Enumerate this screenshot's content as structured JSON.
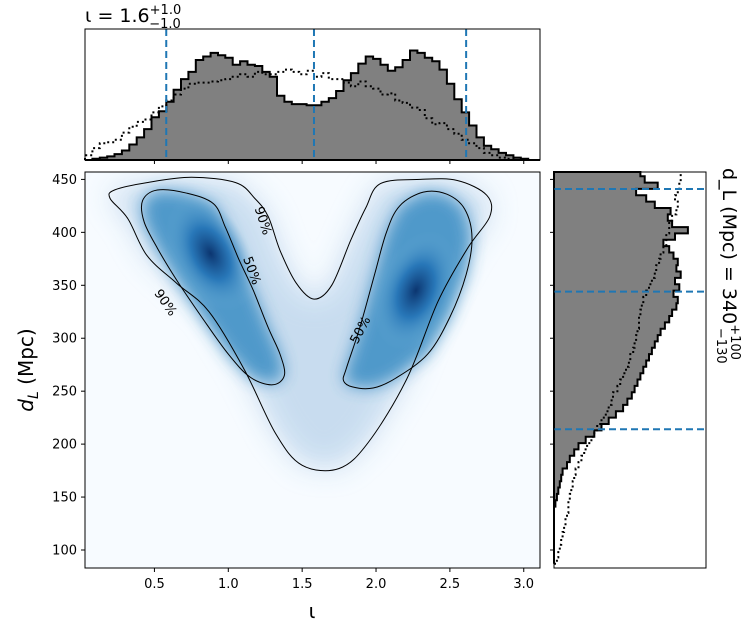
{
  "chart_data": [
    {
      "type": "heatmap",
      "panel": "joint",
      "xlabel": "ι",
      "ylabel": "d_L (Mpc)",
      "xlim": [
        0.03,
        3.11
      ],
      "ylim": [
        83,
        457
      ],
      "x_ticks": [
        "0.5",
        "1.0",
        "1.5",
        "2.0",
        "2.5",
        "3.0"
      ],
      "y_ticks": [
        "100",
        "150",
        "200",
        "250",
        "300",
        "350",
        "400",
        "450"
      ],
      "colormap": "Blues",
      "density_peaks": [
        {
          "x": 0.88,
          "y": 380
        },
        {
          "x": 2.27,
          "y": 345
        }
      ],
      "contour_labels": [
        "90%",
        "50%",
        "50%",
        "90%"
      ],
      "contours": [
        {
          "level": "90%",
          "points": [
            [
              0.23,
              440
            ],
            [
              0.45,
              447
            ],
            [
              0.75,
              452
            ],
            [
              1.05,
              447
            ],
            [
              1.18,
              432
            ],
            [
              1.27,
              415
            ],
            [
              1.35,
              383
            ],
            [
              1.46,
              352
            ],
            [
              1.58,
              337
            ],
            [
              1.7,
              350
            ],
            [
              1.83,
              393
            ],
            [
              1.93,
              423
            ],
            [
              2.03,
              446
            ],
            [
              2.3,
              450
            ],
            [
              2.55,
              449
            ],
            [
              2.75,
              435
            ],
            [
              2.77,
              415
            ],
            [
              2.62,
              385
            ],
            [
              2.42,
              335
            ],
            [
              2.21,
              262
            ],
            [
              1.95,
              202
            ],
            [
              1.75,
              177
            ],
            [
              1.5,
              180
            ],
            [
              1.32,
              210
            ],
            [
              1.11,
              270
            ],
            [
              0.87,
              325
            ],
            [
              0.65,
              352
            ],
            [
              0.45,
              378
            ],
            [
              0.32,
              413
            ],
            [
              0.2,
              432
            ]
          ]
        },
        {
          "level": "50%",
          "points": [
            [
              0.42,
              430
            ],
            [
              0.52,
              440
            ],
            [
              0.72,
              437
            ],
            [
              0.9,
              427
            ],
            [
              0.98,
              405
            ],
            [
              1.07,
              375
            ],
            [
              1.17,
              345
            ],
            [
              1.27,
              310
            ],
            [
              1.35,
              285
            ],
            [
              1.38,
              265
            ],
            [
              1.3,
              256
            ],
            [
              1.15,
              263
            ],
            [
              1.0,
              285
            ],
            [
              0.82,
              320
            ],
            [
              0.65,
              355
            ],
            [
              0.52,
              385
            ],
            [
              0.43,
              410
            ]
          ]
        },
        {
          "level": "50%",
          "points": [
            [
              1.8,
              272
            ],
            [
              1.78,
              260
            ],
            [
              1.84,
              254
            ],
            [
              1.98,
              253
            ],
            [
              2.13,
              262
            ],
            [
              2.35,
              285
            ],
            [
              2.5,
              320
            ],
            [
              2.61,
              360
            ],
            [
              2.65,
              395
            ],
            [
              2.6,
              422
            ],
            [
              2.48,
              436
            ],
            [
              2.32,
              438
            ],
            [
              2.16,
              425
            ],
            [
              2.07,
              400
            ],
            [
              1.99,
              360
            ],
            [
              1.89,
              310
            ]
          ]
        }
      ]
    },
    {
      "type": "bar",
      "panel": "top-marginal",
      "annotation": {
        "base": "ι = 1.6",
        "sup": "+1.0",
        "sub": "−1.0"
      },
      "quantile_lines": [
        0.58,
        1.58,
        2.61
      ],
      "xlim": [
        0.03,
        3.11
      ],
      "ylim": [
        0,
        1.0
      ],
      "bin_edges_start": 0.03,
      "bin_width": 0.05,
      "series": [
        {
          "style": "filled-step",
          "values": [
            0.0,
            0.01,
            0.02,
            0.03,
            0.05,
            0.08,
            0.13,
            0.19,
            0.26,
            0.36,
            0.41,
            0.49,
            0.59,
            0.68,
            0.74,
            0.84,
            0.87,
            0.9,
            0.88,
            0.86,
            0.8,
            0.83,
            0.8,
            0.79,
            0.74,
            0.7,
            0.54,
            0.49,
            0.47,
            0.47,
            0.46,
            0.46,
            0.49,
            0.52,
            0.58,
            0.67,
            0.73,
            0.81,
            0.87,
            0.85,
            0.8,
            0.75,
            0.78,
            0.84,
            0.92,
            0.9,
            0.86,
            0.83,
            0.76,
            0.64,
            0.51,
            0.4,
            0.29,
            0.19,
            0.12,
            0.09,
            0.06,
            0.04,
            0.02,
            0.01,
            0.0,
            0.0
          ]
        },
        {
          "style": "dotted-step",
          "values": [
            0.04,
            0.1,
            0.14,
            0.15,
            0.17,
            0.23,
            0.28,
            0.32,
            0.34,
            0.4,
            0.45,
            0.5,
            0.55,
            0.6,
            0.64,
            0.65,
            0.65,
            0.66,
            0.67,
            0.68,
            0.7,
            0.72,
            0.7,
            0.74,
            0.72,
            0.72,
            0.74,
            0.76,
            0.74,
            0.72,
            0.75,
            0.7,
            0.73,
            0.68,
            0.68,
            0.65,
            0.62,
            0.66,
            0.62,
            0.6,
            0.55,
            0.56,
            0.5,
            0.48,
            0.44,
            0.42,
            0.35,
            0.3,
            0.31,
            0.26,
            0.22,
            0.17,
            0.14,
            0.1,
            0.06,
            0.04,
            0.02,
            0.01,
            0.0,
            0.0,
            0.0,
            0.0
          ]
        }
      ]
    },
    {
      "type": "bar",
      "panel": "right-marginal",
      "annotation": {
        "base": "d_L (Mpc) = 340",
        "sup": "+100",
        "sub": "−130"
      },
      "quantile_lines": [
        214,
        344,
        441
      ],
      "ylim": [
        83,
        457
      ],
      "bin_edges_start": 87,
      "bin_width": 6,
      "series": [
        {
          "style": "filled-step",
          "values": [
            0.0,
            0.0,
            0.0,
            0.0,
            0.0,
            0.0,
            0.0,
            0.0,
            0.0,
            0.01,
            0.02,
            0.03,
            0.04,
            0.05,
            0.06,
            0.09,
            0.11,
            0.14,
            0.17,
            0.22,
            0.28,
            0.33,
            0.38,
            0.43,
            0.48,
            0.51,
            0.54,
            0.56,
            0.58,
            0.6,
            0.62,
            0.64,
            0.66,
            0.68,
            0.7,
            0.72,
            0.74,
            0.77,
            0.8,
            0.82,
            0.85,
            0.86,
            0.83,
            0.87,
            0.84,
            0.88,
            0.85,
            0.86,
            0.83,
            0.8,
            0.76,
            0.84,
            0.93,
            0.82,
            0.79,
            0.81,
            0.7,
            0.64,
            0.57,
            0.72,
            0.63,
            0.6,
            0.5,
            0.4
          ]
        },
        {
          "style": "dotted-step",
          "values": [
            0.02,
            0.03,
            0.04,
            0.05,
            0.06,
            0.07,
            0.08,
            0.09,
            0.1,
            0.1,
            0.11,
            0.12,
            0.13,
            0.14,
            0.15,
            0.17,
            0.19,
            0.21,
            0.23,
            0.26,
            0.28,
            0.3,
            0.33,
            0.36,
            0.38,
            0.4,
            0.41,
            0.44,
            0.46,
            0.48,
            0.5,
            0.52,
            0.53,
            0.55,
            0.56,
            0.57,
            0.58,
            0.59,
            0.59,
            0.6,
            0.61,
            0.62,
            0.64,
            0.66,
            0.68,
            0.7,
            0.71,
            0.73,
            0.74,
            0.76,
            0.78,
            0.78,
            0.8,
            0.8,
            0.82,
            0.85,
            0.86,
            0.84,
            0.86,
            0.87,
            0.88,
            0.88,
            0.92,
            0.95
          ]
        }
      ]
    }
  ],
  "colors": {
    "quantile_line": "#1f77b4",
    "hist_fill": "#808080",
    "contour": "#000000"
  }
}
